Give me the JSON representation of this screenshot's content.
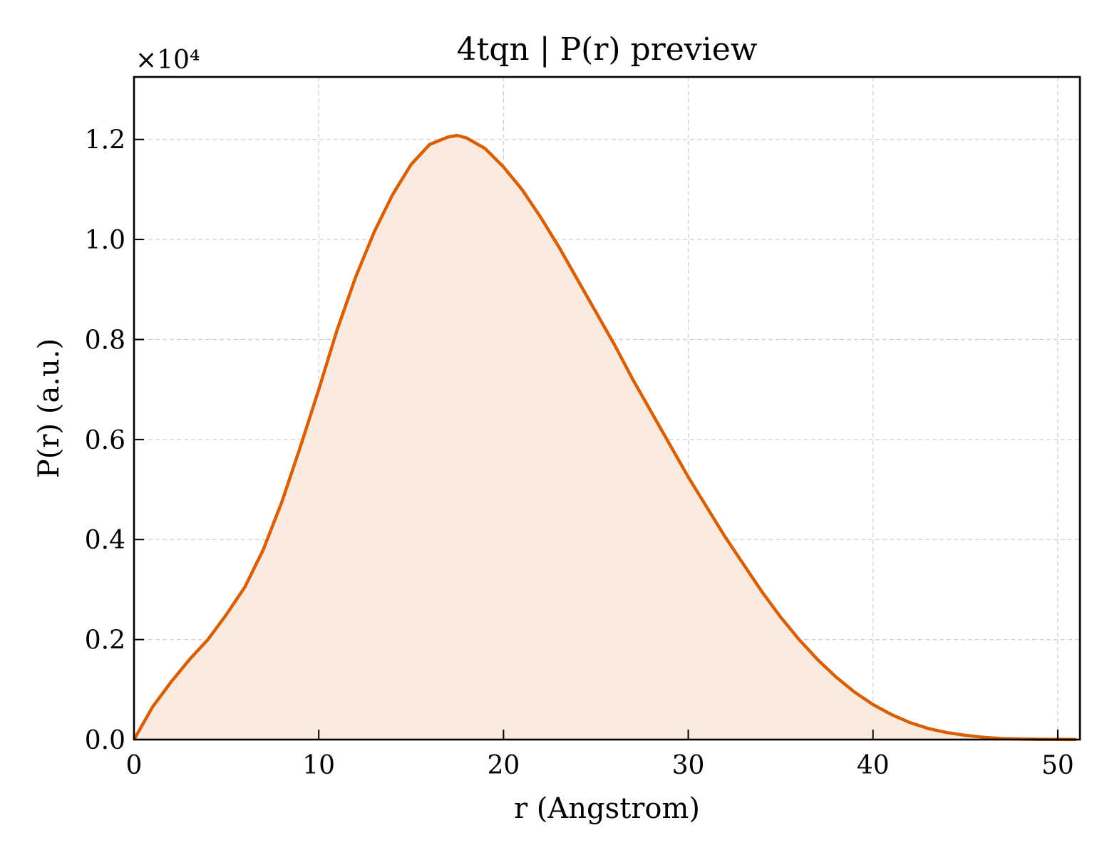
{
  "chart_data": {
    "type": "area",
    "title": "4tqn | P(r) preview",
    "xlabel": "r (Angstrom)",
    "ylabel": "P(r) (a.u.)",
    "y_scale_label": "×10⁴",
    "xlim": [
      0,
      51.2
    ],
    "ylim": [
      0,
      13250
    ],
    "x_ticks": [
      0,
      10,
      20,
      30,
      40,
      50
    ],
    "x_tick_labels": [
      "0",
      "10",
      "20",
      "30",
      "40",
      "50"
    ],
    "y_ticks": [
      0,
      2000,
      4000,
      6000,
      8000,
      10000,
      12000
    ],
    "y_tick_labels": [
      "0.0",
      "0.2",
      "0.4",
      "0.6",
      "0.8",
      "1.0",
      "1.2"
    ],
    "grid": true,
    "colors": {
      "line": "#d95f02",
      "fill": "#f9eae0"
    },
    "series": [
      {
        "x": [
          0,
          1,
          2,
          3,
          4,
          5,
          6,
          7,
          8,
          9,
          10,
          11,
          12,
          13,
          14,
          15,
          16,
          17,
          17.5,
          18,
          19,
          20,
          21,
          22,
          23,
          24,
          25,
          26,
          27,
          28,
          29,
          30,
          31,
          32,
          33,
          34,
          35,
          36,
          37,
          38,
          39,
          40,
          41,
          42,
          43,
          44,
          45,
          46,
          47,
          48,
          49,
          50,
          51
        ],
        "y": [
          0,
          650,
          1150,
          1600,
          2000,
          2500,
          3050,
          3800,
          4750,
          5850,
          7000,
          8200,
          9250,
          10150,
          10900,
          11500,
          11900,
          12050,
          12080,
          12030,
          11820,
          11450,
          11000,
          10450,
          9850,
          9200,
          8550,
          7900,
          7200,
          6550,
          5900,
          5250,
          4650,
          4050,
          3500,
          2950,
          2450,
          2000,
          1600,
          1250,
          950,
          700,
          500,
          340,
          220,
          140,
          85,
          45,
          20,
          10,
          5,
          3,
          2
        ]
      }
    ]
  }
}
